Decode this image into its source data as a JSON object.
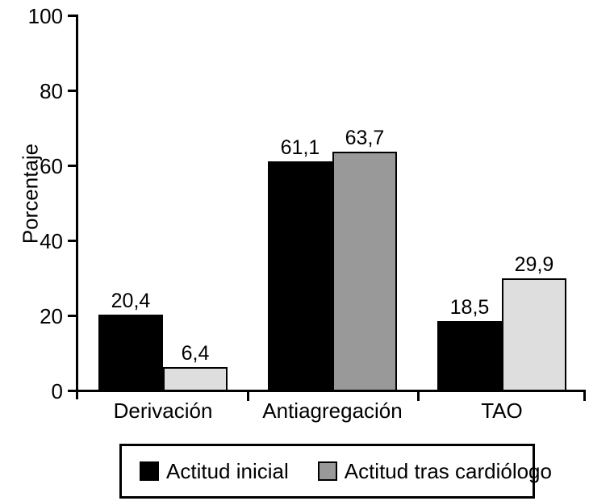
{
  "chart_data": {
    "type": "bar",
    "title": "",
    "ylabel": "Porcentaje",
    "ylim": [
      0,
      100
    ],
    "yticks": [
      0,
      20,
      40,
      60,
      80,
      100
    ],
    "grid": false,
    "legend_position": "bottom",
    "categories": [
      "Derivación",
      "Antiagregación",
      "TAO"
    ],
    "series": [
      {
        "name": "Actitud inicial",
        "color": "#000000",
        "values": [
          20.4,
          61.1,
          18.5
        ],
        "value_labels": [
          "20,4",
          "61,1",
          "18,5"
        ],
        "bar_colors": [
          "#000000",
          "#000000",
          "#000000"
        ]
      },
      {
        "name": "Actitud tras cardiólogo",
        "color": "#999999",
        "values": [
          6.4,
          63.7,
          29.9
        ],
        "value_labels": [
          "6,4",
          "63,7",
          "29,9"
        ],
        "bar_colors": [
          "#dedede",
          "#999999",
          "#dedede"
        ]
      }
    ],
    "colors": {
      "axis": "#000000",
      "background": "#ffffff",
      "bar_border": "#000000"
    }
  }
}
